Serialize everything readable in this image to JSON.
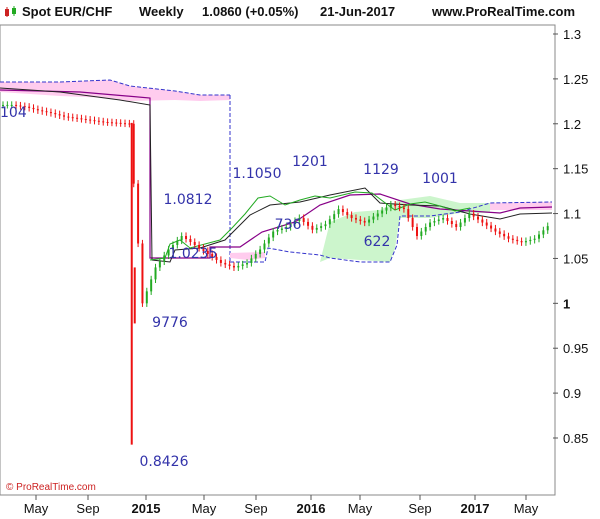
{
  "header": {
    "instrument": "Spot EUR/CHF",
    "timeframe": "Weekly",
    "price": "1.0860 (+0.05%)",
    "date": "21-Jun-2017",
    "site": "www.ProRealTime.com"
  },
  "credit": "© ProRealTime.com",
  "colors": {
    "candle_up": "#22aa22",
    "candle_down": "#ee1111",
    "tenkan": "#222222",
    "kijun": "#880088",
    "chikou": "#22aa22",
    "cloud_bull": "#ccf5cc",
    "cloud_bear": "#ffccee",
    "span_b": "#3333cc",
    "labels": "#3333aa"
  },
  "chart_data": {
    "type": "candlestick",
    "y_ticks": [
      "1.3",
      "1.25",
      "1.2",
      "1.15",
      "1.1",
      "1.05",
      "1",
      "0.95",
      "0.9",
      "0.85"
    ],
    "ylim": [
      0.8,
      1.3
    ],
    "x_ticks": [
      "May",
      "Sep",
      "2015",
      "May",
      "Sep",
      "2016",
      "May",
      "Sep",
      "2017",
      "May"
    ],
    "bold_x_ticks": [
      "2015",
      "2016",
      "2017"
    ],
    "annotations": [
      "104",
      "0.8426",
      "9776",
      "1.0812",
      "1.0235",
      "1.1050",
      "736",
      "1201",
      "1129",
      "622",
      "1001"
    ],
    "series": [
      {
        "name": "EUR/CHF close",
        "values": [
          1.221,
          1.219,
          1.215,
          1.212,
          1.208,
          1.206,
          1.204,
          1.202,
          1.201,
          1.2,
          1.0,
          1.04,
          1.06,
          1.075,
          1.065,
          1.055,
          1.045,
          1.04,
          1.045,
          1.06,
          1.08,
          1.085,
          1.095,
          1.082,
          1.088,
          1.105,
          1.095,
          1.09,
          1.1,
          1.11,
          1.105,
          1.075,
          1.09,
          1.095,
          1.085,
          1.1,
          1.09,
          1.08,
          1.072,
          1.068,
          1.072,
          1.086
        ]
      }
    ]
  }
}
